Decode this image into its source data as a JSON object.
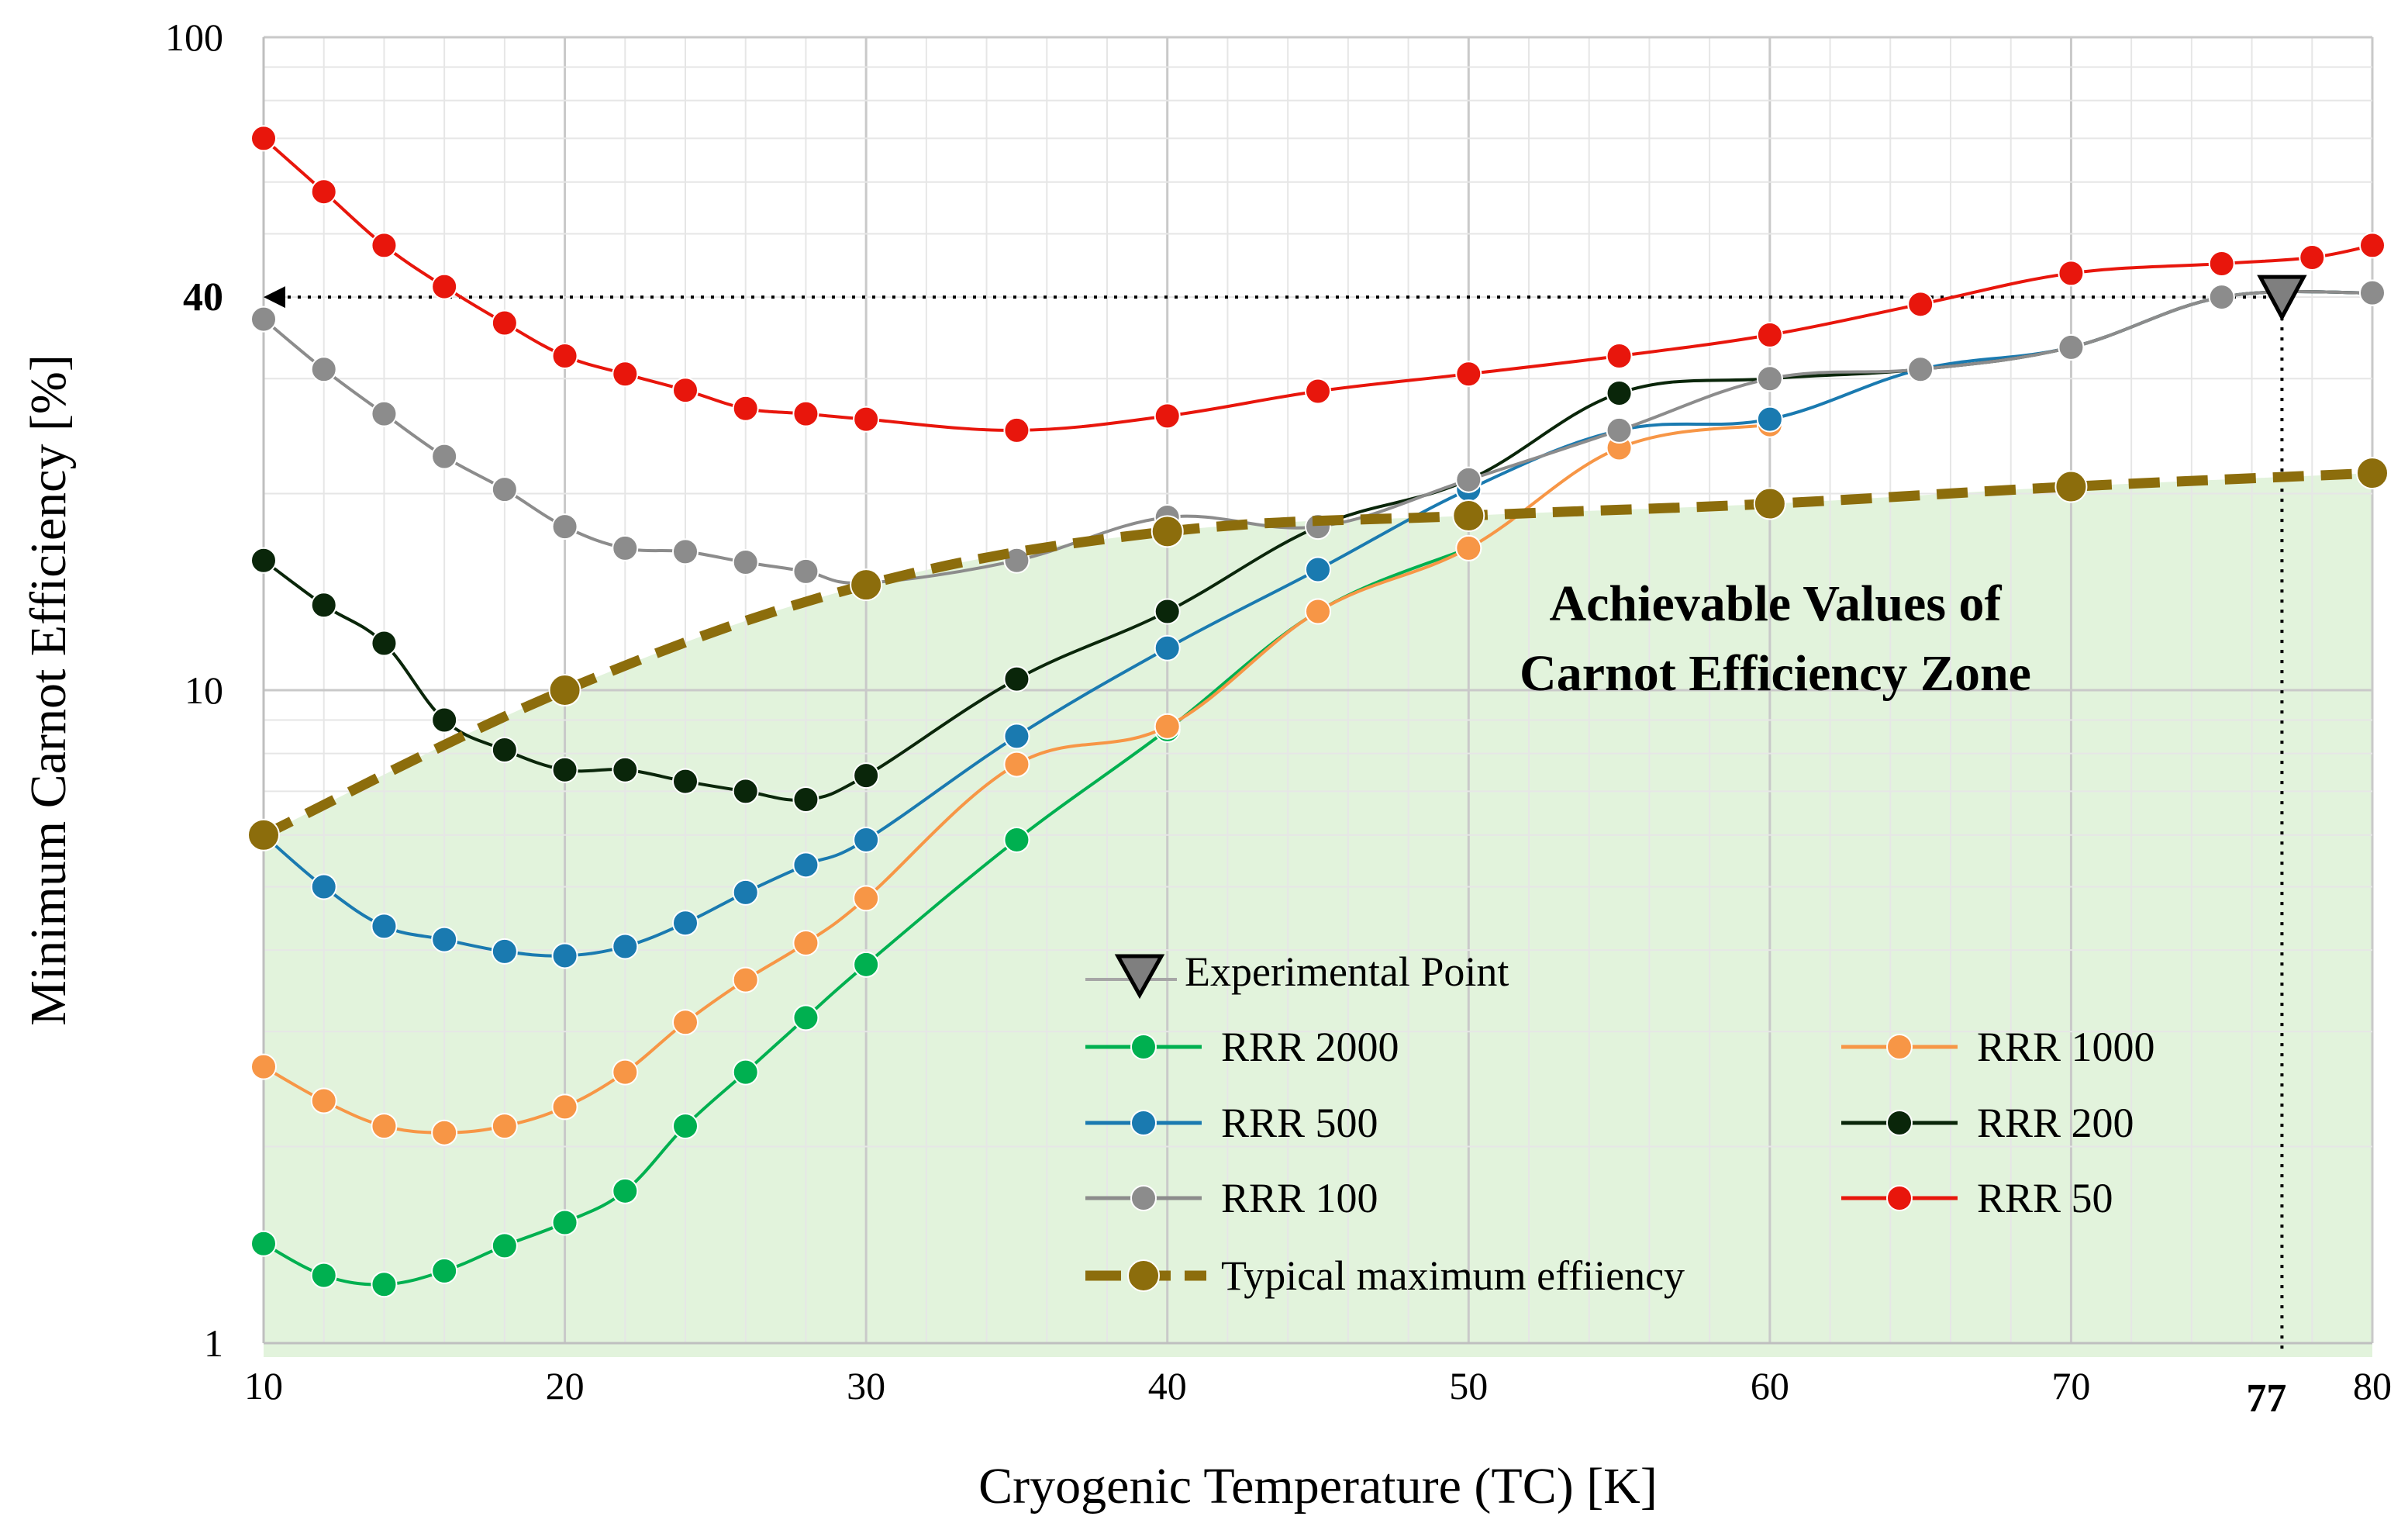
{
  "chart_data": {
    "type": "line",
    "title": "",
    "xlabel": "Cryogenic Temperature (TC) [K]",
    "ylabel": "Minimum Carnot Efficiency [%]",
    "xlim": [
      10,
      80
    ],
    "ylim": [
      1,
      100
    ],
    "yscale": "log",
    "grid": true,
    "x_ticks": [
      "10",
      "20",
      "30",
      "40",
      "50",
      "60",
      "70",
      "80"
    ],
    "y_ticks": [
      "1",
      "10",
      "100"
    ],
    "highlight_x_label": "77",
    "highlight_y_label": "40",
    "zone_label_line1": "Achievable Values of",
    "zone_label_line2": "Carnot Efficiency Zone",
    "experimental_point": {
      "name": "Experimental Point",
      "x": 77,
      "y": 40,
      "color": "#7f7f7f"
    },
    "series": [
      {
        "name": "RRR 2000",
        "color": "#00b050",
        "x": [
          10,
          12,
          14,
          16,
          18,
          20,
          22,
          24,
          26,
          28,
          30,
          35,
          40,
          45,
          50
        ],
        "values": [
          1.42,
          1.27,
          1.23,
          1.29,
          1.41,
          1.53,
          1.71,
          2.15,
          2.6,
          3.15,
          3.8,
          5.9,
          8.7,
          13.2,
          16.5
        ]
      },
      {
        "name": "RRR 1000",
        "color": "#f79646",
        "x": [
          10,
          12,
          14,
          16,
          18,
          20,
          22,
          24,
          26,
          28,
          30,
          35,
          40,
          45,
          50,
          55,
          60
        ],
        "values": [
          2.65,
          2.35,
          2.15,
          2.1,
          2.15,
          2.3,
          2.6,
          3.1,
          3.6,
          4.1,
          4.8,
          7.7,
          8.8,
          13.2,
          16.5,
          23.5,
          25.5
        ]
      },
      {
        "name": "RRR 500",
        "color": "#1a7ab0",
        "x": [
          10,
          12,
          14,
          16,
          18,
          20,
          22,
          24,
          26,
          28,
          30,
          35,
          40,
          45,
          50,
          55,
          60,
          65,
          70,
          75,
          80
        ],
        "values": [
          6.0,
          5.0,
          4.35,
          4.15,
          3.98,
          3.92,
          4.05,
          4.4,
          4.9,
          5.4,
          5.9,
          8.5,
          11.6,
          15.3,
          20.3,
          25.0,
          26.0,
          31.0,
          33.5,
          40.0,
          40.6
        ]
      },
      {
        "name": "RRR 200",
        "color": "#0a260a",
        "x": [
          10,
          12,
          14,
          16,
          18,
          20,
          22,
          24,
          26,
          28,
          30,
          35,
          40,
          45,
          50,
          55,
          60,
          65,
          70,
          75,
          80
        ],
        "values": [
          15.8,
          13.5,
          11.8,
          9.0,
          8.1,
          7.55,
          7.55,
          7.25,
          7.0,
          6.8,
          7.4,
          10.4,
          13.2,
          17.8,
          21.0,
          28.5,
          30.0,
          31.0,
          33.5,
          40.0,
          40.6
        ]
      },
      {
        "name": "RRR 100",
        "color": "#8c8c8c",
        "x": [
          10,
          12,
          14,
          16,
          18,
          20,
          22,
          24,
          26,
          28,
          30,
          35,
          40,
          45,
          50,
          55,
          60,
          65,
          70,
          75,
          80
        ],
        "values": [
          37.0,
          31.0,
          26.5,
          22.8,
          20.3,
          17.8,
          16.5,
          16.3,
          15.7,
          15.2,
          14.6,
          15.8,
          18.4,
          17.8,
          21.0,
          25.0,
          30.0,
          31.0,
          33.5,
          40.0,
          40.6
        ]
      },
      {
        "name": "RRR 50",
        "color": "#e8160c",
        "x": [
          10,
          12,
          14,
          16,
          18,
          20,
          22,
          24,
          26,
          28,
          30,
          35,
          40,
          45,
          50,
          55,
          60,
          65,
          70,
          75,
          78,
          80
        ],
        "values": [
          70.0,
          58.0,
          48.0,
          41.5,
          36.5,
          32.5,
          30.5,
          28.8,
          27.0,
          26.5,
          26.0,
          25.0,
          26.3,
          28.7,
          30.5,
          32.5,
          35.0,
          39.0,
          43.5,
          45.0,
          46.0,
          48.0
        ]
      },
      {
        "name": "Typical maximum effiiency",
        "color": "#8c6d0c",
        "dashed": true,
        "x": [
          10,
          20,
          30,
          40,
          50,
          60,
          70,
          80
        ],
        "values": [
          6.0,
          10.0,
          14.5,
          17.5,
          18.5,
          19.3,
          20.5,
          21.5
        ]
      }
    ],
    "legend": {
      "placement": "lower-right",
      "items": [
        "Experimental Point",
        "RRR 2000",
        "RRR 1000",
        "RRR 500",
        "RRR 200",
        "RRR 100",
        "RRR 50",
        "Typical maximum effiiency"
      ]
    }
  }
}
